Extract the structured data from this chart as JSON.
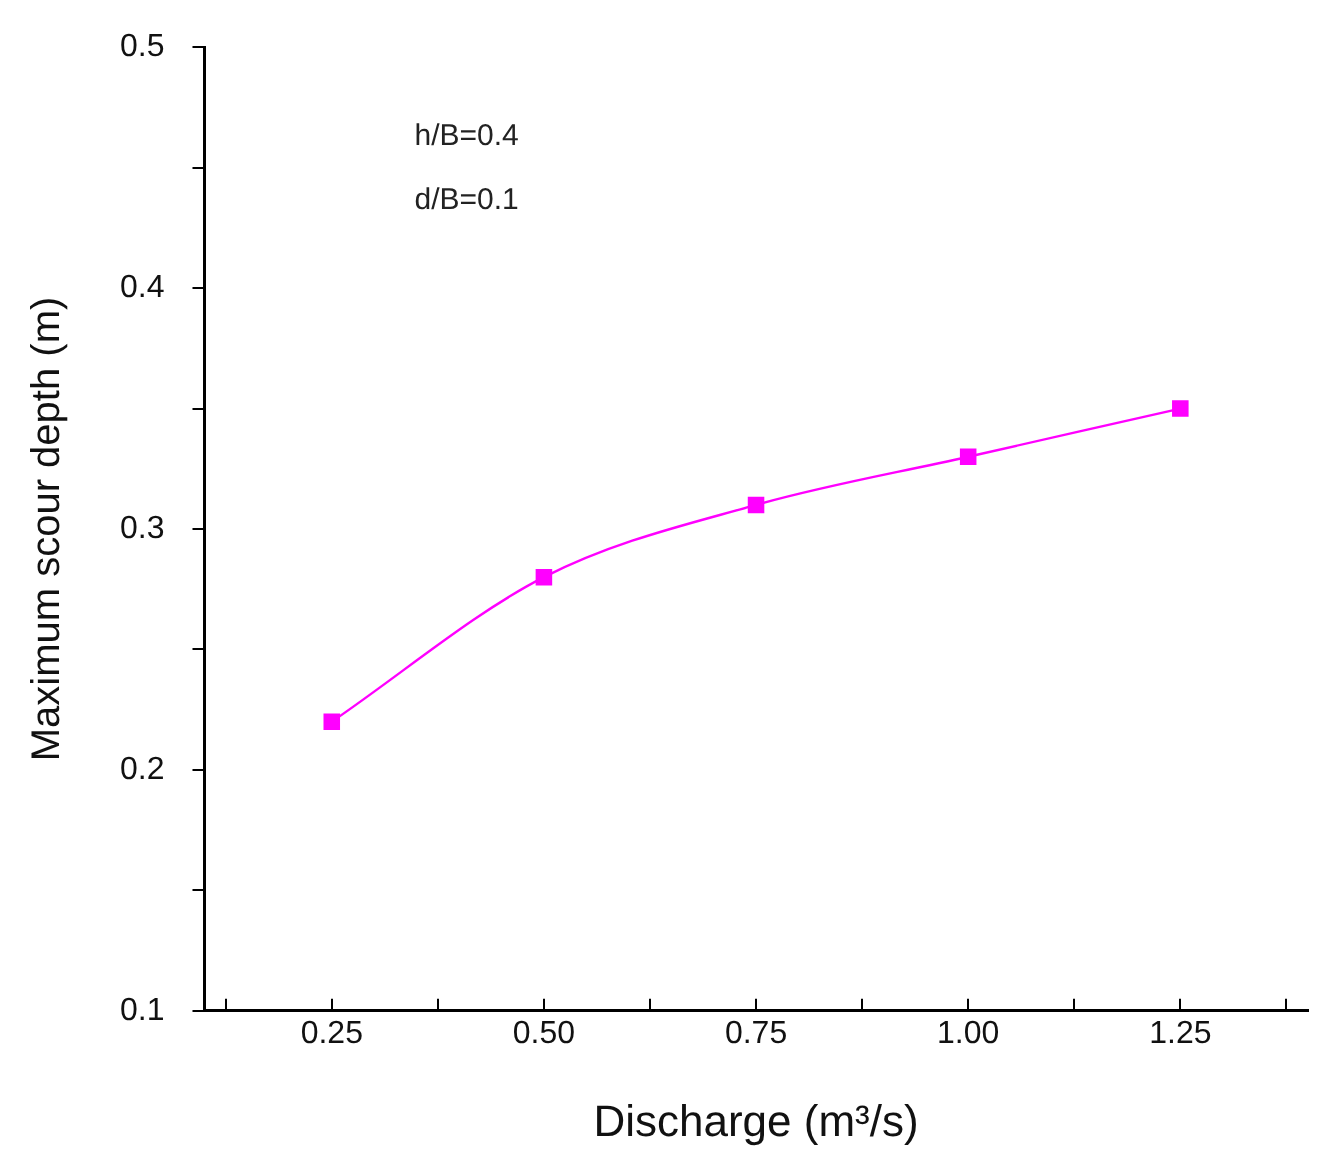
{
  "chart_data": {
    "type": "line",
    "xlabel": "Discharge (m³/s)",
    "ylabel": "Maximum scour depth (m)",
    "x": [
      0.25,
      0.5,
      0.75,
      1.0,
      1.25
    ],
    "series": [
      {
        "color": "#ff00ff",
        "values": [
          0.22,
          0.28,
          0.31,
          0.33,
          0.35
        ]
      }
    ],
    "xlim": [
      0.1,
      1.4
    ],
    "xticks": [
      {
        "value": 0.125,
        "label": null
      },
      {
        "value": 0.25,
        "label": "0.25"
      },
      {
        "value": 0.375,
        "label": null
      },
      {
        "value": 0.5,
        "label": "0.50"
      },
      {
        "value": 0.625,
        "label": null
      },
      {
        "value": 0.75,
        "label": "0.75"
      },
      {
        "value": 0.875,
        "label": null
      },
      {
        "value": 1.0,
        "label": "1.00"
      },
      {
        "value": 1.125,
        "label": null
      },
      {
        "value": 1.25,
        "label": "1.25"
      },
      {
        "value": 1.375,
        "label": null
      }
    ],
    "ylim": [
      0.1,
      0.5
    ],
    "yticks": [
      0.1,
      {
        "value": 0.15,
        "label": null
      },
      0.2,
      {
        "value": 0.25,
        "label": null
      },
      0.3,
      {
        "value": 0.35,
        "label": null
      },
      0.4,
      {
        "value": 0.45,
        "label": null
      },
      0.5
    ],
    "annotations": [
      "h/B=0.4",
      "d/B=0.1"
    ],
    "marker": "square",
    "line_style": "solid",
    "grid": false,
    "legend": false
  }
}
